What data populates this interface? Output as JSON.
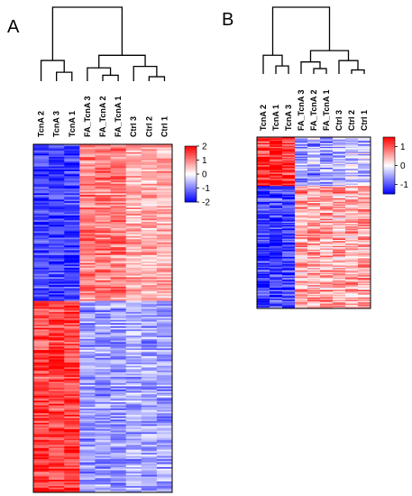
{
  "chart_data": [
    {
      "type": "heatmap",
      "panel_label": "A",
      "columns": [
        "TcnA 2",
        "TcnA 3",
        "TcnA 1",
        "FA_TcnA 3",
        "FA_TcnA 2",
        "FA_TcnA 1",
        "Ctrl 3",
        "Ctrl 2",
        "Ctrl 1"
      ],
      "column_groups": [
        "TcnA",
        "TcnA",
        "TcnA",
        "FA_TcnA",
        "FA_TcnA",
        "FA_TcnA",
        "Ctrl",
        "Ctrl",
        "Ctrl"
      ],
      "row_blocks": [
        {
          "label_fraction_start": 0.0,
          "label_fraction_end": 0.45,
          "group_means": {
            "TcnA": -1.5,
            "FA_TcnA": 1.0,
            "Ctrl": 0.6
          }
        },
        {
          "label_fraction_start": 0.45,
          "label_fraction_end": 1.0,
          "group_means": {
            "TcnA": 1.5,
            "FA_TcnA": -0.8,
            "Ctrl": -0.7
          }
        }
      ],
      "colorbar": {
        "min": -2,
        "max": 2,
        "ticks": [
          2,
          1,
          0,
          -1,
          -2
        ],
        "low_color": "#0000ff",
        "mid_color": "#ffffff",
        "high_color": "#ff0000"
      },
      "dendrogram": true
    },
    {
      "type": "heatmap",
      "panel_label": "B",
      "columns": [
        "TcnA 2",
        "TcnA 1",
        "TcnA 3",
        "FA_TcnA 3",
        "FA_TcnA 2",
        "FA_TcnA 1",
        "Ctrl 3",
        "Ctrl 2",
        "Ctrl 1"
      ],
      "column_groups": [
        "TcnA",
        "TcnA",
        "TcnA",
        "FA_TcnA",
        "FA_TcnA",
        "FA_TcnA",
        "Ctrl",
        "Ctrl",
        "Ctrl"
      ],
      "row_blocks": [
        {
          "label_fraction_start": 0.0,
          "label_fraction_end": 0.28,
          "group_means": {
            "TcnA": 1.2,
            "FA_TcnA": -0.6,
            "Ctrl": -0.4
          }
        },
        {
          "label_fraction_start": 0.28,
          "label_fraction_end": 1.0,
          "group_means": {
            "TcnA": -1.2,
            "FA_TcnA": 0.5,
            "Ctrl": 0.5
          }
        }
      ],
      "colorbar": {
        "min": -1.5,
        "max": 1.5,
        "ticks": [
          1,
          0,
          -1
        ],
        "low_color": "#0000ff",
        "mid_color": "#ffffff",
        "high_color": "#ff0000"
      },
      "dendrogram": true
    }
  ]
}
